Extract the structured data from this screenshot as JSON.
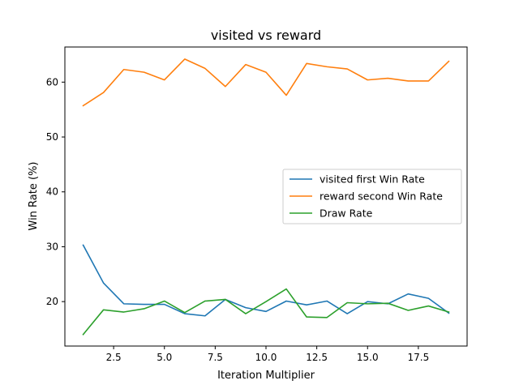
{
  "chart_data": {
    "type": "line",
    "title": "visited vs reward",
    "xlabel": "Iteration Multiplier",
    "ylabel": "Win Rate (%)",
    "xlim": [
      0.1,
      19.9
    ],
    "ylim": [
      11.9,
      66.4
    ],
    "xticks": [
      2.5,
      5.0,
      7.5,
      10.0,
      12.5,
      15.0,
      17.5
    ],
    "xtick_labels": [
      "2.5",
      "5.0",
      "7.5",
      "10.0",
      "12.5",
      "15.0",
      "17.5"
    ],
    "yticks": [
      20,
      30,
      40,
      50,
      60
    ],
    "ytick_labels": [
      "20",
      "30",
      "40",
      "50",
      "60"
    ],
    "grid": false,
    "legend_position": "center-right",
    "x": [
      1,
      2,
      3,
      4,
      5,
      6,
      7,
      8,
      9,
      10,
      11,
      12,
      13,
      14,
      15,
      16,
      17,
      18,
      19
    ],
    "series": [
      {
        "name": "visited first Win Rate",
        "color": "#1f77b4",
        "values": [
          30.3,
          23.4,
          19.6,
          19.5,
          19.5,
          17.8,
          17.4,
          20.4,
          18.9,
          18.2,
          20.1,
          19.4,
          20.1,
          17.8,
          20.0,
          19.6,
          21.4,
          20.6,
          17.9
        ]
      },
      {
        "name": "reward second Win Rate",
        "color": "#ff7f0e",
        "values": [
          55.7,
          58.1,
          62.3,
          61.8,
          60.4,
          64.2,
          62.5,
          59.2,
          63.2,
          61.8,
          57.6,
          63.4,
          62.8,
          62.4,
          60.4,
          60.7,
          60.2,
          60.2,
          63.8
        ]
      },
      {
        "name": "Draw Rate",
        "color": "#2ca02c",
        "values": [
          14.0,
          18.5,
          18.1,
          18.7,
          20.1,
          18.0,
          20.1,
          20.4,
          17.8,
          20.0,
          22.3,
          17.2,
          17.1,
          19.8,
          19.6,
          19.7,
          18.4,
          19.2,
          18.1
        ]
      }
    ]
  }
}
